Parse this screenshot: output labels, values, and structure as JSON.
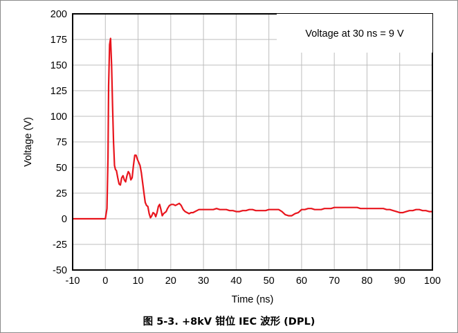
{
  "chart_data": {
    "type": "line",
    "title": "",
    "xlabel": "Time (ns)",
    "ylabel": "Voltage (V)",
    "xlim": [
      -10,
      100
    ],
    "ylim": [
      -50,
      200
    ],
    "xticks": [
      -10,
      0,
      10,
      20,
      30,
      40,
      50,
      60,
      70,
      80,
      90,
      100
    ],
    "yticks": [
      -50,
      -25,
      0,
      25,
      50,
      75,
      100,
      125,
      150,
      175,
      200
    ],
    "grid": true,
    "annotation": "Voltage at 30 ns = 9 V",
    "line_color": "#e8141c",
    "series": [
      {
        "x": [
          -10,
          0,
          0.5,
          0.8,
          1.0,
          1.3,
          1.6,
          1.9,
          2.2,
          2.5,
          2.8,
          3.1,
          3.4,
          3.8,
          4.2,
          4.6,
          5.0,
          5.4,
          5.8,
          6.2,
          6.6,
          7.0,
          7.4,
          7.8,
          8.2,
          8.6,
          9.0,
          9.4,
          9.8,
          10.2,
          10.6,
          11.0,
          11.4,
          11.8,
          12.2,
          12.6,
          13.0,
          13.4,
          13.8,
          14.2,
          14.6,
          15.0,
          15.4,
          15.8,
          16.2,
          16.6,
          17.0,
          17.4,
          17.8,
          18.2,
          18.6,
          19.0,
          19.6,
          20.2,
          20.8,
          21.4,
          22.0,
          22.6,
          23.2,
          23.8,
          24.4,
          25.0,
          25.6,
          26.2,
          26.8,
          27.4,
          28.0,
          28.6,
          29.2,
          30.0,
          31.0,
          32.0,
          33.0,
          34.0,
          35.0,
          36.0,
          37.0,
          38.0,
          39.0,
          40.0,
          41.0,
          42.0,
          43.0,
          44.0,
          45.0,
          46.0,
          47.0,
          48.0,
          49.0,
          50.0,
          51.0,
          52.0,
          53.0,
          54.0,
          55.0,
          56.0,
          57.0,
          58.0,
          59.0,
          60.0,
          61.0,
          62.0,
          63.0,
          64.0,
          65.0,
          66.0,
          67.0,
          68.0,
          69.0,
          70.0,
          71.0,
          72.0,
          73.0,
          74.0,
          75.0,
          76.0,
          77.0,
          78.0,
          79.0,
          80.0,
          81.0,
          82.0,
          83.0,
          84.0,
          85.0,
          86.0,
          87.0,
          88.0,
          89.0,
          90.0,
          91.0,
          92.0,
          93.0,
          94.0,
          95.0,
          96.0,
          97.0,
          98.0,
          99.0,
          100.0
        ],
        "values": [
          0,
          0,
          10,
          60,
          130,
          170,
          176,
          150,
          110,
          75,
          52,
          48,
          47,
          40,
          34,
          33,
          40,
          42,
          38,
          36,
          42,
          46,
          44,
          38,
          40,
          52,
          62,
          62,
          58,
          55,
          52,
          45,
          35,
          25,
          16,
          13,
          12,
          5,
          1,
          3,
          6,
          5,
          2,
          6,
          12,
          14,
          9,
          3,
          5,
          6,
          7,
          10,
          13,
          14,
          14,
          13,
          14,
          15,
          13,
          9,
          7,
          6,
          5,
          6,
          6,
          7,
          8,
          9,
          9,
          9,
          9,
          9,
          9,
          10,
          9,
          9,
          9,
          8,
          8,
          7,
          7,
          8,
          8,
          9,
          9,
          8,
          8,
          8,
          8,
          9,
          9,
          9,
          9,
          7,
          4,
          3,
          3,
          5,
          6,
          9,
          9,
          10,
          10,
          9,
          9,
          9,
          10,
          10,
          10,
          11,
          11,
          11,
          11,
          11,
          11,
          11,
          11,
          10,
          10,
          10,
          10,
          10,
          10,
          10,
          10,
          9,
          9,
          8,
          7,
          6,
          6,
          7,
          8,
          8,
          9,
          9,
          8,
          8,
          7,
          7
        ]
      }
    ]
  },
  "caption": "图 5-3. +8kV 钳位 IEC 波形 (DPL)"
}
